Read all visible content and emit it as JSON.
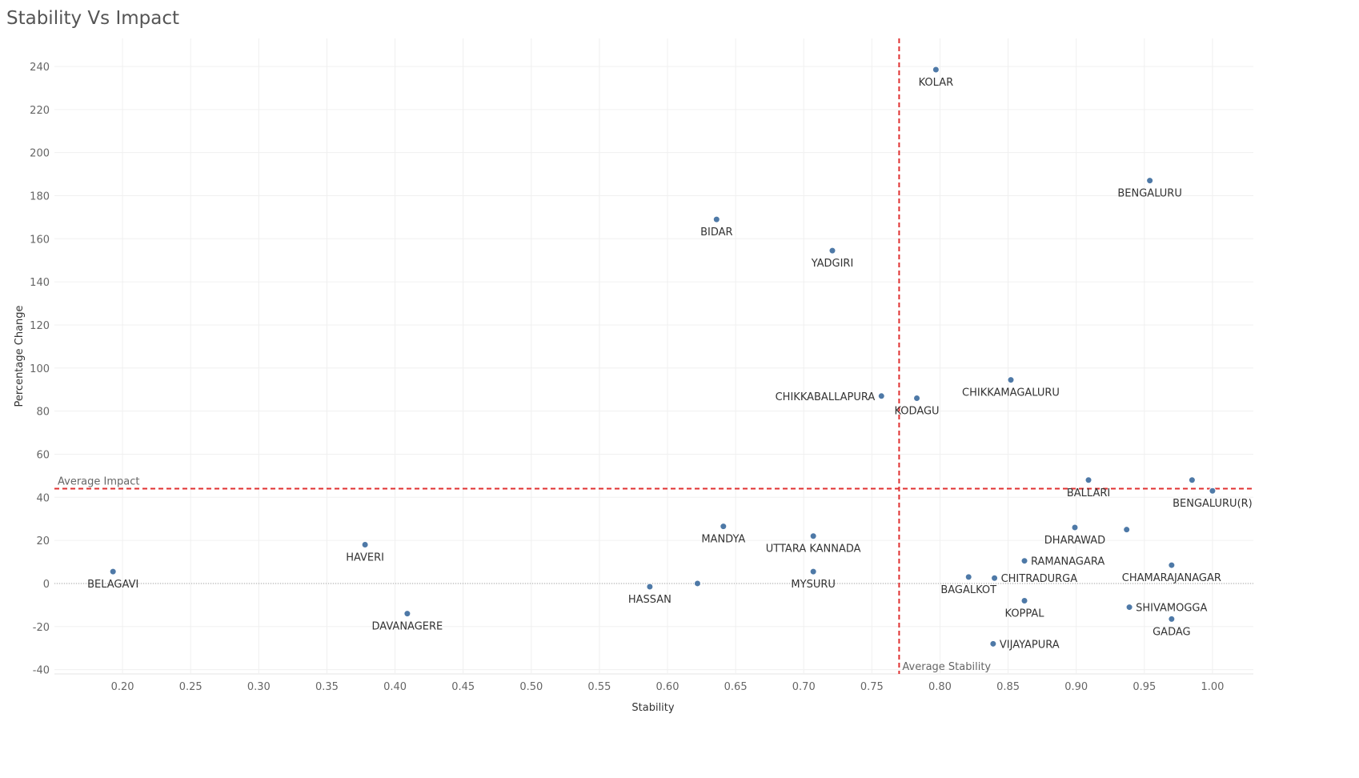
{
  "page": {
    "title": "Stability Vs Impact"
  },
  "chart_data": {
    "type": "scatter",
    "title": "Stability Vs Impact",
    "xlabel": "Stability",
    "ylabel": "Percentage Change",
    "xlim": [
      0.15,
      1.03
    ],
    "ylim": [
      -42,
      253
    ],
    "x_ticks": [
      0.2,
      0.25,
      0.3,
      0.35,
      0.4,
      0.45,
      0.5,
      0.55,
      0.6,
      0.65,
      0.7,
      0.75,
      0.8,
      0.85,
      0.9,
      0.95,
      1.0
    ],
    "x_tick_labels": [
      "0.20",
      "0.25",
      "0.30",
      "0.35",
      "0.40",
      "0.45",
      "0.50",
      "0.55",
      "0.60",
      "0.65",
      "0.70",
      "0.75",
      "0.80",
      "0.85",
      "0.90",
      "0.95",
      "1.00"
    ],
    "y_ticks": [
      -40,
      -20,
      0,
      20,
      40,
      60,
      80,
      100,
      120,
      140,
      160,
      180,
      200,
      220,
      240
    ],
    "y_tick_labels": [
      "-40",
      "-20",
      "0",
      "20",
      "40",
      "60",
      "80",
      "100",
      "120",
      "140",
      "160",
      "180",
      "200",
      "220",
      "240"
    ],
    "grid": true,
    "point_color": "#4e79a7",
    "reference_color": "#e03131",
    "reference_lines": {
      "average_stability": {
        "value": 0.77,
        "label": "Average Stability"
      },
      "average_impact": {
        "value": 44,
        "label": "Average Impact"
      }
    },
    "points": [
      {
        "label": "KOLAR",
        "x": 0.797,
        "y": 238.5,
        "label_pos": "below"
      },
      {
        "label": "BENGALURU",
        "x": 0.954,
        "y": 187,
        "label_pos": "below"
      },
      {
        "label": "BIDAR",
        "x": 0.636,
        "y": 169,
        "label_pos": "below"
      },
      {
        "label": "YADGIRI",
        "x": 0.721,
        "y": 154.5,
        "label_pos": "below"
      },
      {
        "label": "CHIKKAMAGALURU",
        "x": 0.852,
        "y": 94.5,
        "label_pos": "below"
      },
      {
        "label": "CHIKKABALLAPURA",
        "x": 0.757,
        "y": 87,
        "label_pos": "left"
      },
      {
        "label": "KODAGU",
        "x": 0.783,
        "y": 86,
        "label_pos": "below"
      },
      {
        "label": "BALLARI",
        "x": 0.909,
        "y": 48,
        "label_pos": "below"
      },
      {
        "label": "",
        "x": 0.985,
        "y": 48,
        "label_pos": "none"
      },
      {
        "label": "BENGALURU(R)",
        "x": 1.0,
        "y": 43,
        "label_pos": "below"
      },
      {
        "label": "MANDYA",
        "x": 0.641,
        "y": 26.5,
        "label_pos": "below"
      },
      {
        "label": "DHARAWAD",
        "x": 0.899,
        "y": 26,
        "label_pos": "below"
      },
      {
        "label": "",
        "x": 0.937,
        "y": 25,
        "label_pos": "none"
      },
      {
        "label": "UTTARA KANNADA",
        "x": 0.707,
        "y": 22,
        "label_pos": "below"
      },
      {
        "label": "HAVERI",
        "x": 0.378,
        "y": 18,
        "label_pos": "below"
      },
      {
        "label": "RAMANAGARA",
        "x": 0.862,
        "y": 10.5,
        "label_pos": "right"
      },
      {
        "label": "CHAMARAJANAGAR",
        "x": 0.97,
        "y": 8.5,
        "label_pos": "below"
      },
      {
        "label": "BELAGAVI",
        "x": 0.193,
        "y": 5.5,
        "label_pos": "below"
      },
      {
        "label": "MYSURU",
        "x": 0.707,
        "y": 5.5,
        "label_pos": "below"
      },
      {
        "label": "BAGALKOT",
        "x": 0.821,
        "y": 3,
        "label_pos": "below"
      },
      {
        "label": "CHITRADURGA",
        "x": 0.84,
        "y": 2.5,
        "label_pos": "right"
      },
      {
        "label": "",
        "x": 0.622,
        "y": 0,
        "label_pos": "none"
      },
      {
        "label": "HASSAN",
        "x": 0.587,
        "y": -1.5,
        "label_pos": "below"
      },
      {
        "label": "KOPPAL",
        "x": 0.862,
        "y": -8,
        "label_pos": "below"
      },
      {
        "label": "SHIVAMOGGA",
        "x": 0.939,
        "y": -11,
        "label_pos": "right"
      },
      {
        "label": "DAVANAGERE",
        "x": 0.409,
        "y": -14,
        "label_pos": "below"
      },
      {
        "label": "GADAG",
        "x": 0.97,
        "y": -16.5,
        "label_pos": "below"
      },
      {
        "label": "VIJAYAPURA",
        "x": 0.839,
        "y": -28,
        "label_pos": "right"
      }
    ]
  }
}
